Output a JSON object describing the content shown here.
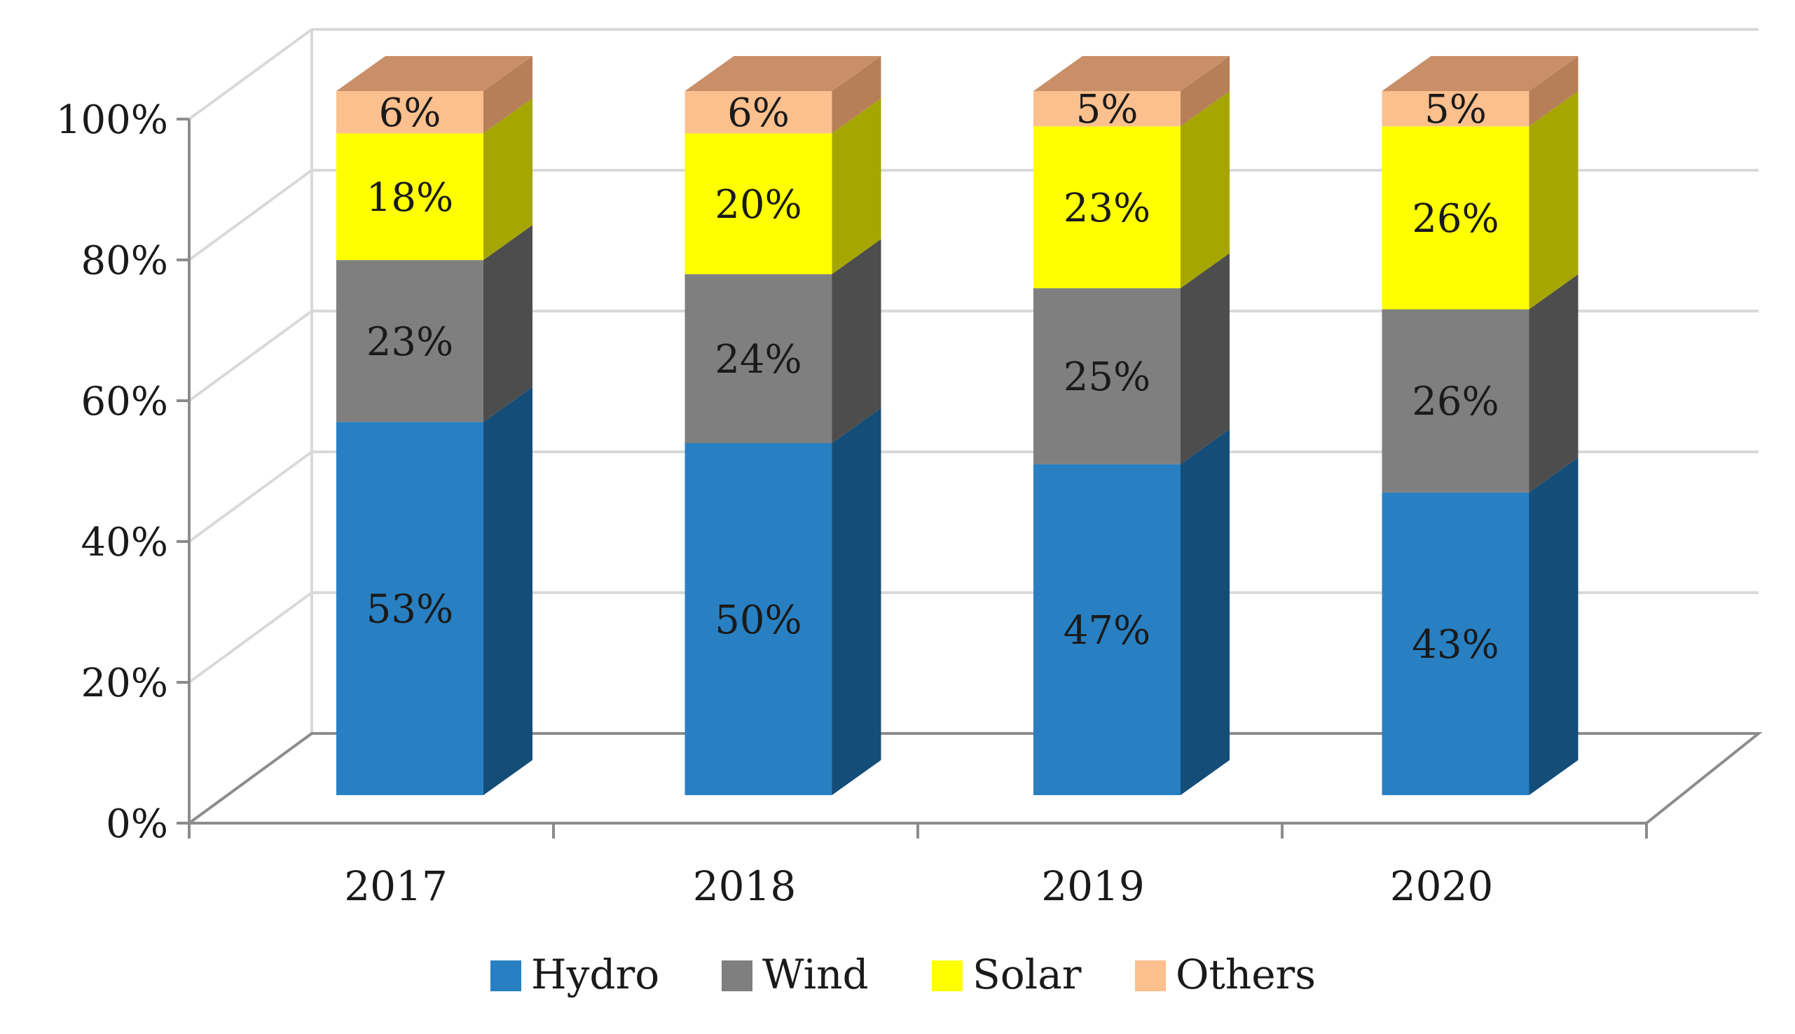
{
  "chart_data": {
    "type": "bar",
    "stacked": true,
    "three_d": true,
    "title": "",
    "xlabel": "",
    "ylabel": "",
    "ylim": [
      0,
      100
    ],
    "y_ticks": [
      0,
      20,
      40,
      60,
      80,
      100
    ],
    "y_tick_labels": [
      "0%",
      "20%",
      "40%",
      "60%",
      "80%",
      "100%"
    ],
    "categories": [
      "2017",
      "2018",
      "2019",
      "2020"
    ],
    "series": [
      {
        "name": "Hydro",
        "color": "#2880c2",
        "side_color": "#144d78",
        "top_color": "#3a93d6",
        "values": [
          53,
          50,
          47,
          43
        ],
        "labels": [
          "53%",
          "50%",
          "47%",
          "43%"
        ]
      },
      {
        "name": "Wind",
        "color": "#7f7f7f",
        "side_color": "#4d4d4d",
        "top_color": "#9a9a9a",
        "values": [
          23,
          24,
          25,
          26
        ],
        "labels": [
          "23%",
          "24%",
          "25%",
          "26%"
        ]
      },
      {
        "name": "Solar",
        "color": "#ffff00",
        "side_color": "#a6a600",
        "top_color": "#ffff66",
        "values": [
          18,
          20,
          23,
          26
        ],
        "labels": [
          "18%",
          "20%",
          "23%",
          "26%"
        ]
      },
      {
        "name": "Others",
        "color": "#fcbf8e",
        "side_color": "#b67f58",
        "top_color": "#c98f68",
        "values": [
          6,
          6,
          5,
          5
        ],
        "labels": [
          "6%",
          "6%",
          "5%",
          "5%"
        ]
      }
    ],
    "legend_position": "bottom",
    "grid": true
  }
}
